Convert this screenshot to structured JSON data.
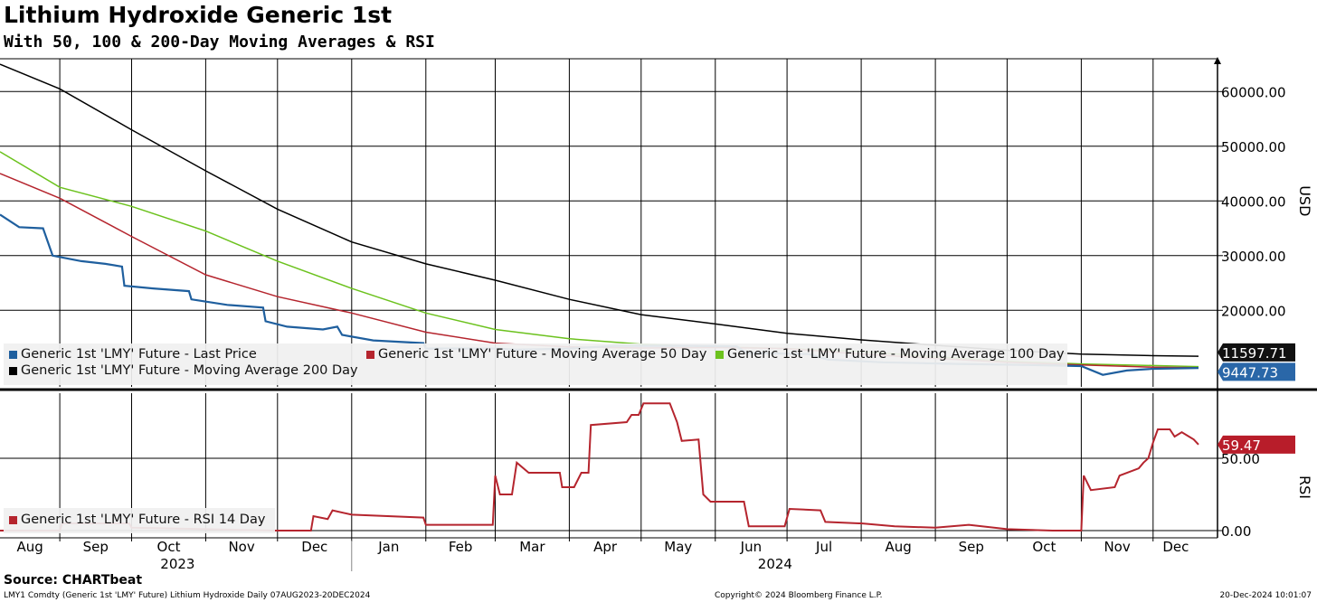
{
  "title": "Lithium Hydroxide Generic 1st",
  "subtitle": "With 50, 100 & 200-Day Moving Averages & RSI",
  "source": "Source: CHARTbeat",
  "footer": {
    "left": "LMY1 Comdty (Generic 1st 'LMY' Future) Lithium Hydroxide  Daily 07AUG2023-20DEC2024",
    "center": "Copyright© 2024 Bloomberg Finance L.P.",
    "right": "20-Dec-2024 10:01:07"
  },
  "chart_data": [
    {
      "type": "line",
      "ylabel": "USD",
      "ylim": [
        6000,
        66000
      ],
      "yticks": [
        "20000.00",
        "30000.00",
        "40000.00",
        "50000.00",
        "60000.00"
      ],
      "ytick_values": [
        20000,
        30000,
        40000,
        50000,
        60000
      ],
      "x_months": [
        "Aug",
        "Sep",
        "Oct",
        "Nov",
        "Dec",
        "Jan",
        "Feb",
        "Mar",
        "Apr",
        "May",
        "Jun",
        "Jul",
        "Aug",
        "Sep",
        "Oct",
        "Nov",
        "Dec"
      ],
      "x_years": [
        "2023",
        "2024"
      ],
      "grid": true,
      "legend": "bottom-left",
      "series": [
        {
          "name": "Generic 1st 'LMY' Future - Last Price",
          "color": "#1f5f9e",
          "last_value_label": "9447.73",
          "points": [
            [
              "2023-08-07",
              37500
            ],
            [
              "2023-08-15",
              35200
            ],
            [
              "2023-08-25",
              35000
            ],
            [
              "2023-08-29",
              30000
            ],
            [
              "2023-09-10",
              29000
            ],
            [
              "2023-09-20",
              28500
            ],
            [
              "2023-09-27",
              28000
            ],
            [
              "2023-09-28",
              24500
            ],
            [
              "2023-10-10",
              24000
            ],
            [
              "2023-10-25",
              23500
            ],
            [
              "2023-10-26",
              22000
            ],
            [
              "2023-11-10",
              21000
            ],
            [
              "2023-11-25",
              20500
            ],
            [
              "2023-11-26",
              18000
            ],
            [
              "2023-12-05",
              17000
            ],
            [
              "2023-12-20",
              16500
            ],
            [
              "2023-12-26",
              17000
            ],
            [
              "2023-12-28",
              15500
            ],
            [
              "2024-01-10",
              14500
            ],
            [
              "2024-01-31",
              14000
            ],
            [
              "2024-02-01",
              13000
            ],
            [
              "2024-03-01",
              13000
            ],
            [
              "2024-03-10",
              12800
            ],
            [
              "2024-04-01",
              13000
            ],
            [
              "2024-04-20",
              13500
            ],
            [
              "2024-05-20",
              13500
            ],
            [
              "2024-06-10",
              13400
            ],
            [
              "2024-06-14",
              12200
            ],
            [
              "2024-07-10",
              12000
            ],
            [
              "2024-07-18",
              11000
            ],
            [
              "2024-08-10",
              10500
            ],
            [
              "2024-09-10",
              10200
            ],
            [
              "2024-10-10",
              10000
            ],
            [
              "2024-11-01",
              9800
            ],
            [
              "2024-11-10",
              8200
            ],
            [
              "2024-11-20",
              9000
            ],
            [
              "2024-12-01",
              9300
            ],
            [
              "2024-12-20",
              9447.73
            ]
          ]
        },
        {
          "name": "Generic 1st 'LMY' Future - Moving Average 50 Day",
          "color": "#b5252e",
          "points": [
            [
              "2023-08-07",
              45000
            ],
            [
              "2023-09-01",
              40500
            ],
            [
              "2023-10-01",
              33500
            ],
            [
              "2023-11-01",
              26500
            ],
            [
              "2023-12-01",
              22500
            ],
            [
              "2024-01-01",
              19500
            ],
            [
              "2024-02-01",
              16000
            ],
            [
              "2024-03-01",
              14000
            ],
            [
              "2024-04-01",
              13300
            ],
            [
              "2024-05-01",
              13100
            ],
            [
              "2024-06-01",
              13200
            ],
            [
              "2024-07-01",
              13000
            ],
            [
              "2024-08-01",
              12000
            ],
            [
              "2024-09-01",
              11200
            ],
            [
              "2024-10-01",
              10500
            ],
            [
              "2024-11-01",
              10000
            ],
            [
              "2024-12-01",
              9600
            ],
            [
              "2024-12-20",
              9500
            ]
          ]
        },
        {
          "name": "Generic 1st 'LMY' Future - Moving Average 100 Day",
          "color": "#6cc21e",
          "points": [
            [
              "2023-08-07",
              49000
            ],
            [
              "2023-09-01",
              42500
            ],
            [
              "2023-10-01",
              39000
            ],
            [
              "2023-11-01",
              34500
            ],
            [
              "2023-12-01",
              29000
            ],
            [
              "2024-01-01",
              24000
            ],
            [
              "2024-02-01",
              19500
            ],
            [
              "2024-03-01",
              16500
            ],
            [
              "2024-04-01",
              14800
            ],
            [
              "2024-05-01",
              13800
            ],
            [
              "2024-06-01",
              13300
            ],
            [
              "2024-07-01",
              13000
            ],
            [
              "2024-08-01",
              12500
            ],
            [
              "2024-09-01",
              11500
            ],
            [
              "2024-10-01",
              10700
            ],
            [
              "2024-11-01",
              10200
            ],
            [
              "2024-12-01",
              9900
            ],
            [
              "2024-12-20",
              9700
            ]
          ]
        },
        {
          "name": "Generic 1st 'LMY' Future - Moving Average 200 Day",
          "color": "#000000",
          "last_value_label": "11597.71",
          "points": [
            [
              "2023-08-07",
              65000
            ],
            [
              "2023-09-01",
              60500
            ],
            [
              "2023-10-01",
              53000
            ],
            [
              "2023-11-01",
              45500
            ],
            [
              "2023-12-01",
              38500
            ],
            [
              "2024-01-01",
              32500
            ],
            [
              "2024-02-01",
              28500
            ],
            [
              "2024-03-01",
              25500
            ],
            [
              "2024-04-01",
              22000
            ],
            [
              "2024-05-01",
              19200
            ],
            [
              "2024-06-01",
              17500
            ],
            [
              "2024-07-01",
              15800
            ],
            [
              "2024-08-01",
              14600
            ],
            [
              "2024-09-01",
              13600
            ],
            [
              "2024-10-01",
              12700
            ],
            [
              "2024-11-01",
              12000
            ],
            [
              "2024-12-01",
              11700
            ],
            [
              "2024-12-20",
              11597.71
            ]
          ]
        }
      ]
    },
    {
      "type": "line",
      "ylabel": "RSI",
      "ylim": [
        -5,
        95
      ],
      "yticks": [
        "0.00",
        "50.00"
      ],
      "ytick_values": [
        0,
        50
      ],
      "legend": "bottom-left",
      "series": [
        {
          "name": "Generic 1st 'LMY' Future - RSI 14 Day",
          "color": "#b5252e",
          "last_value_label": "59.47",
          "points": [
            [
              "2023-08-07",
              0
            ],
            [
              "2023-09-01",
              0
            ],
            [
              "2023-09-02",
              5
            ],
            [
              "2023-09-30",
              5
            ],
            [
              "2023-10-01",
              2
            ],
            [
              "2023-11-01",
              1
            ],
            [
              "2023-11-30",
              0
            ],
            [
              "2023-12-15",
              0
            ],
            [
              "2023-12-16",
              10
            ],
            [
              "2023-12-22",
              8
            ],
            [
              "2023-12-24",
              14
            ],
            [
              "2024-01-01",
              11
            ],
            [
              "2024-01-31",
              9
            ],
            [
              "2024-02-01",
              4
            ],
            [
              "2024-02-29",
              4
            ],
            [
              "2024-03-01",
              38
            ],
            [
              "2024-03-03",
              25
            ],
            [
              "2024-03-08",
              25
            ],
            [
              "2024-03-10",
              47
            ],
            [
              "2024-03-15",
              40
            ],
            [
              "2024-03-28",
              40
            ],
            [
              "2024-03-29",
              30
            ],
            [
              "2024-04-03",
              30
            ],
            [
              "2024-04-06",
              40
            ],
            [
              "2024-04-09",
              40
            ],
            [
              "2024-04-10",
              73
            ],
            [
              "2024-04-25",
              75
            ],
            [
              "2024-04-27",
              80
            ],
            [
              "2024-04-30",
              80
            ],
            [
              "2024-05-02",
              88
            ],
            [
              "2024-05-13",
              88
            ],
            [
              "2024-05-16",
              75
            ],
            [
              "2024-05-18",
              62
            ],
            [
              "2024-05-25",
              63
            ],
            [
              "2024-05-27",
              25
            ],
            [
              "2024-05-30",
              20
            ],
            [
              "2024-06-13",
              20
            ],
            [
              "2024-06-15",
              3
            ],
            [
              "2024-06-30",
              3
            ],
            [
              "2024-07-02",
              15
            ],
            [
              "2024-07-15",
              14
            ],
            [
              "2024-07-17",
              6
            ],
            [
              "2024-07-31",
              5
            ],
            [
              "2024-08-01",
              5
            ],
            [
              "2024-08-15",
              3
            ],
            [
              "2024-09-01",
              2
            ],
            [
              "2024-09-15",
              4
            ],
            [
              "2024-10-01",
              1
            ],
            [
              "2024-10-20",
              0
            ],
            [
              "2024-11-01",
              0
            ],
            [
              "2024-11-02",
              38
            ],
            [
              "2024-11-05",
              28
            ],
            [
              "2024-11-15",
              30
            ],
            [
              "2024-11-17",
              38
            ],
            [
              "2024-11-25",
              43
            ],
            [
              "2024-11-27",
              47
            ],
            [
              "2024-11-29",
              50
            ],
            [
              "2024-12-01",
              61
            ],
            [
              "2024-12-03",
              70
            ],
            [
              "2024-12-08",
              70
            ],
            [
              "2024-12-10",
              65
            ],
            [
              "2024-12-13",
              68
            ],
            [
              "2024-12-15",
              66
            ],
            [
              "2024-12-18",
              63
            ],
            [
              "2024-12-20",
              59.47
            ]
          ]
        }
      ]
    }
  ]
}
